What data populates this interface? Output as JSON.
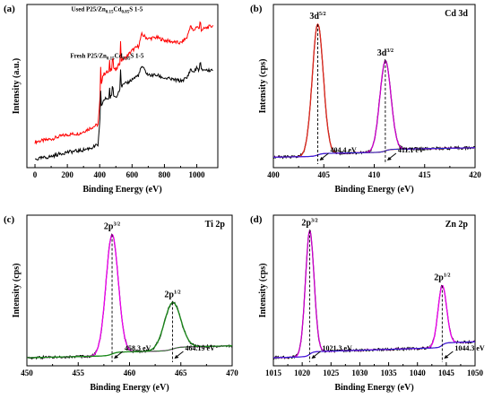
{
  "chart_data": [
    {
      "panel": "(a)",
      "type": "line",
      "xlabel": "Binding Energy (eV)",
      "ylabel": "Intensity (a.u.)",
      "xlim": [
        -50,
        1130
      ],
      "xticks": [
        0,
        200,
        400,
        600,
        800,
        1000
      ],
      "y_ticks_shown": false,
      "series": [
        {
          "name": "Used P25/Zn0.15Cd0.85S 1-5",
          "label_parts": [
            "Used P25/Zn",
            "0.15",
            "Cd",
            "0.85",
            "S 1-5"
          ],
          "color": "#ff0000",
          "x": [
            0,
            100,
            160,
            200,
            280,
            350,
            390,
            400,
            405,
            420,
            440,
            460,
            480,
            500,
            530,
            560,
            600,
            640,
            660,
            700,
            750,
            800,
            850,
            900,
            940,
            960,
            980,
            1000,
            1020,
            1050,
            1070,
            1100
          ],
          "y": [
            0.14,
            0.16,
            0.18,
            0.19,
            0.2,
            0.24,
            0.26,
            0.4,
            0.52,
            0.6,
            0.62,
            0.62,
            0.66,
            0.63,
            0.7,
            0.72,
            0.77,
            0.8,
            0.88,
            0.85,
            0.86,
            0.84,
            0.83,
            0.82,
            0.86,
            0.94,
            0.9,
            0.94,
            0.91,
            0.92,
            0.93,
            0.94
          ]
        },
        {
          "name": "Fresh P25/Zn0.15Cd0.85S 1-5",
          "label_parts": [
            "Fresh P25/Zn",
            "0.15",
            "Cd",
            "0.85",
            "S 1-5"
          ],
          "color": "#000000",
          "x": [
            0,
            100,
            160,
            200,
            280,
            350,
            390,
            400,
            405,
            420,
            440,
            460,
            480,
            500,
            530,
            560,
            600,
            640,
            660,
            700,
            750,
            800,
            850,
            900,
            940,
            960,
            980,
            1000,
            1020,
            1050,
            1070,
            1100
          ],
          "y": [
            0.02,
            0.04,
            0.06,
            0.07,
            0.08,
            0.1,
            0.12,
            0.26,
            0.36,
            0.42,
            0.44,
            0.44,
            0.46,
            0.45,
            0.52,
            0.54,
            0.57,
            0.6,
            0.66,
            0.6,
            0.6,
            0.58,
            0.57,
            0.56,
            0.58,
            0.64,
            0.62,
            0.65,
            0.63,
            0.64,
            0.63,
            0.64
          ]
        }
      ]
    },
    {
      "panel": "(b)",
      "element_label": "Cd 3d",
      "type": "line",
      "xlabel": "Binding Energy (eV)",
      "ylabel": "Intensity (cps)",
      "xlim": [
        400,
        420
      ],
      "xticks": [
        400,
        405,
        410,
        415,
        420
      ],
      "y_ticks_shown": false,
      "peaks": [
        {
          "label_main": "3d",
          "label_sup": "5/2",
          "position": 404.4,
          "annotation": "404.4 eV"
        },
        {
          "label_main": "3d",
          "label_sup": "3/2",
          "position": 411.1,
          "annotation": "411.1 eV"
        }
      ],
      "curves": [
        {
          "role": "raw",
          "color": "#000000"
        },
        {
          "role": "fit-component-1",
          "color": "#e0281e",
          "center": 404.4,
          "height": 0.9,
          "width": 0.55
        },
        {
          "role": "fit-component-2",
          "color": "#cc00cc",
          "center": 411.1,
          "height": 0.62,
          "width": 0.55
        },
        {
          "role": "background",
          "color": "#1e2bd6"
        }
      ],
      "background_start": 0.035,
      "background_end": 0.1
    },
    {
      "panel": "(c)",
      "element_label": "Ti 2p",
      "type": "line",
      "xlabel": "Binding Energy (eV)",
      "ylabel": "Intensity (cps)",
      "xlim": [
        450,
        470
      ],
      "xticks": [
        450,
        455,
        460,
        465,
        470
      ],
      "y_ticks_shown": false,
      "peaks": [
        {
          "label_main": "2p",
          "label_sup": "3/2",
          "position": 458.3,
          "annotation": "458.3 eV"
        },
        {
          "label_main": "2p",
          "label_sup": "1/2",
          "position": 464.19,
          "annotation": "464.19 eV"
        }
      ],
      "curves": [
        {
          "role": "raw",
          "color": "#000000"
        },
        {
          "role": "fit-component-1",
          "color": "#ee00ee",
          "center": 458.3,
          "height": 0.9,
          "width": 0.6
        },
        {
          "role": "fit-component-2",
          "color": "#1a8a1a",
          "center": 464.19,
          "height": 0.35,
          "width": 0.8
        },
        {
          "role": "background",
          "color": "#1a8a1a"
        }
      ],
      "background_start": 0.02,
      "background_end": 0.11
    },
    {
      "panel": "(d)",
      "element_label": "Zn 2p",
      "type": "line",
      "xlabel": "Binding Energy (eV)",
      "ylabel": "Intensity (cps)",
      "xlim": [
        1015,
        1050
      ],
      "xticks": [
        1015,
        1020,
        1025,
        1030,
        1035,
        1040,
        1045,
        1050
      ],
      "y_ticks_shown": false,
      "peaks": [
        {
          "label_main": "2p",
          "label_sup": "3/2",
          "position": 1021.3,
          "annotation": "1021.3 eV"
        },
        {
          "label_main": "2p",
          "label_sup": "1/2",
          "position": 1044.3,
          "annotation": "1044.3 eV"
        }
      ],
      "curves": [
        {
          "role": "raw",
          "color": "#000000"
        },
        {
          "role": "fit-component-1",
          "color": "#cc00cc",
          "center": 1021.3,
          "height": 0.93,
          "width": 0.75
        },
        {
          "role": "fit-component-2",
          "color": "#ee00ee",
          "center": 1044.3,
          "height": 0.45,
          "width": 0.75
        },
        {
          "role": "background",
          "color": "#1e2bd6"
        }
      ],
      "background_start": 0.02,
      "background_end": 0.14
    }
  ]
}
